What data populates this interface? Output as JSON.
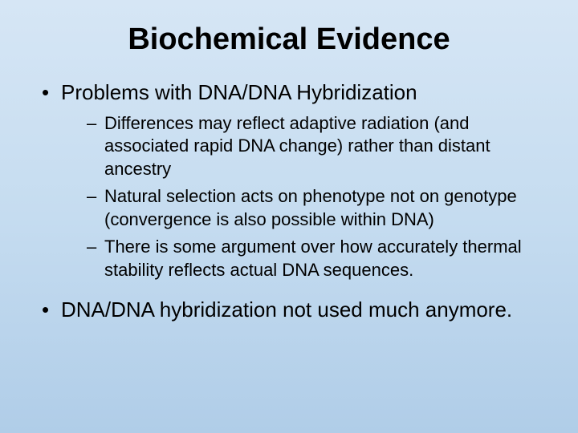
{
  "slide": {
    "background_gradient": [
      "#d6e6f5",
      "#c5dcf0",
      "#b0cde8"
    ],
    "text_color": "#000000",
    "font_family": "Arial",
    "title": {
      "text": "Biochemical Evidence",
      "fontsize": 38,
      "weight": "bold",
      "align": "center"
    },
    "bullets": [
      {
        "text": "Problems with DNA/DNA Hybridization",
        "fontsize": 26,
        "sub": [
          {
            "text": "Differences may reflect adaptive radiation (and associated rapid DNA change) rather than distant ancestry",
            "fontsize": 22
          },
          {
            "text": "Natural selection acts on phenotype not on genotype (convergence is also possible within DNA)",
            "fontsize": 22
          },
          {
            "text": "There is some argument over how accurately thermal stability reflects actual DNA sequences.",
            "fontsize": 22
          }
        ]
      },
      {
        "text": "DNA/DNA hybridization not used much anymore.",
        "fontsize": 26,
        "sub": []
      }
    ]
  }
}
